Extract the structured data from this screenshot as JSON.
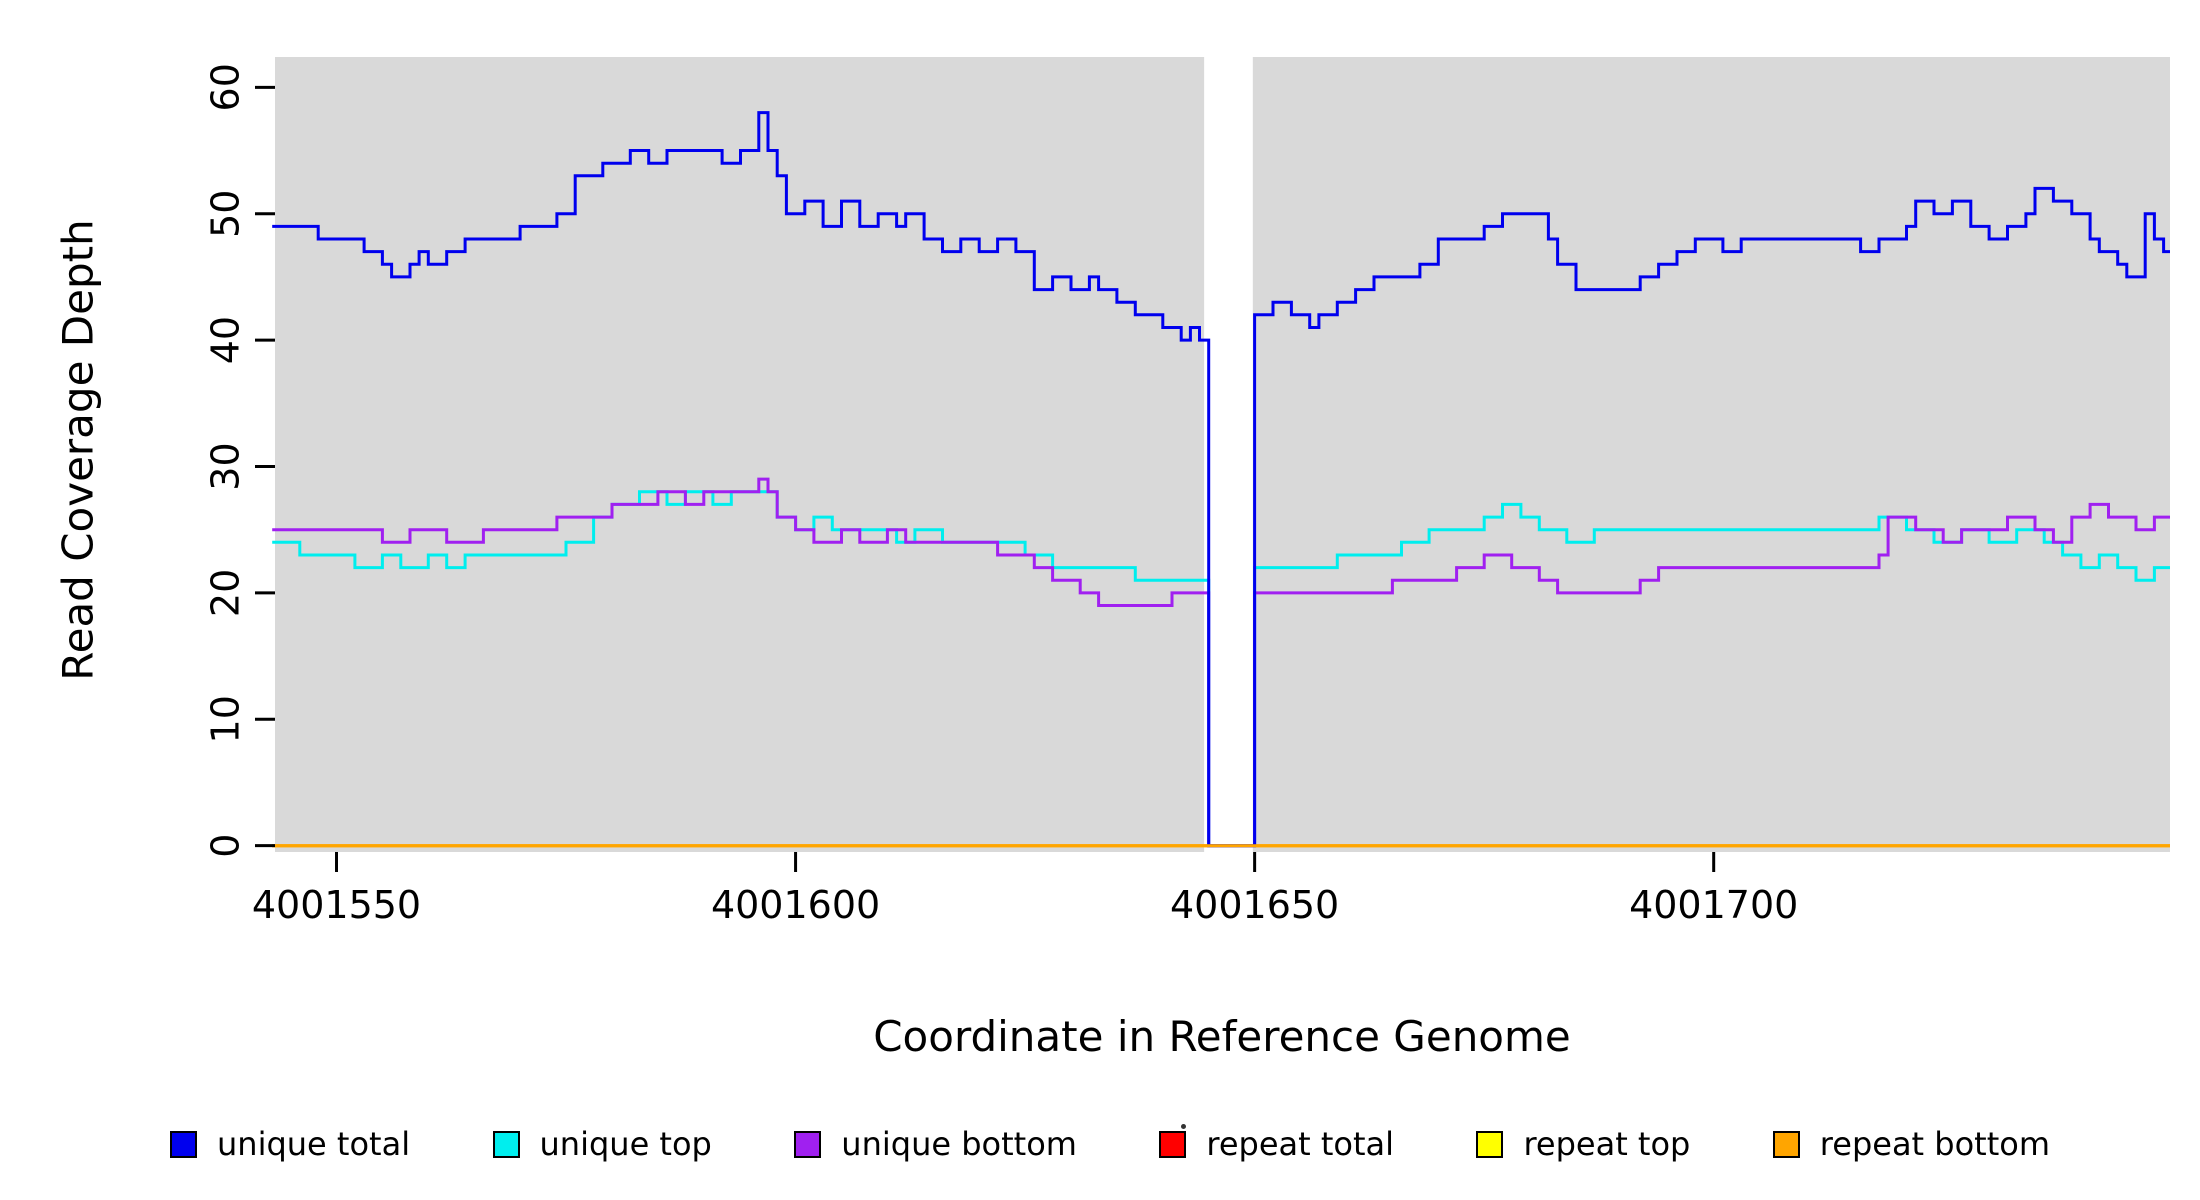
{
  "chart_data": {
    "type": "line",
    "subtype": "step",
    "title": "",
    "xlabel": "Coordinate in Reference Genome",
    "ylabel": "Read Coverage Depth",
    "x_domain": [
      4001543.3,
      4001749.7
    ],
    "y_domain": [
      -0.5,
      62.4
    ],
    "x_ticks": [
      4001550,
      4001600,
      4001650,
      4001700
    ],
    "y_ticks": [
      0,
      10,
      20,
      30,
      40,
      50,
      60
    ],
    "plot_bg": "#d9d9d9",
    "gap": {
      "x_start": 4001644.5,
      "x_end": 4001649.8
    },
    "grid": false,
    "legend_position": "bottom",
    "legend": [
      {
        "label": "unique total",
        "color": "#0000EE"
      },
      {
        "label": "unique top",
        "color": "#00EEEE"
      },
      {
        "label": "unique bottom",
        "color": "#A020F0"
      },
      {
        "label": "repeat total",
        "color": "#FF0000"
      },
      {
        "label": "repeat top",
        "color": "#FFFF00"
      },
      {
        "label": "repeat bottom",
        "color": "#FFA500"
      }
    ],
    "series": [
      {
        "name": "repeat total",
        "color": "#FF0000",
        "points": [
          [
            4001543,
            0
          ]
        ]
      },
      {
        "name": "repeat top",
        "color": "#FFFF00",
        "points": [
          [
            4001543,
            0
          ]
        ]
      },
      {
        "name": "unique top",
        "color": "#00EEEE",
        "points": [
          [
            4001543,
            24
          ],
          [
            4001546,
            23
          ],
          [
            4001552,
            22
          ],
          [
            4001555,
            23
          ],
          [
            4001557,
            22
          ],
          [
            4001560,
            23
          ],
          [
            4001562,
            22
          ],
          [
            4001564,
            23
          ],
          [
            4001572,
            23
          ],
          [
            4001575,
            24
          ],
          [
            4001578,
            26
          ],
          [
            4001580,
            27
          ],
          [
            4001583,
            28
          ],
          [
            4001586,
            27
          ],
          [
            4001588,
            28
          ],
          [
            4001591,
            27
          ],
          [
            4001593,
            28
          ],
          [
            4001596,
            28
          ],
          [
            4001598,
            26
          ],
          [
            4001600,
            25
          ],
          [
            4001602,
            26
          ],
          [
            4001604,
            25
          ],
          [
            4001608,
            25
          ],
          [
            4001611,
            24
          ],
          [
            4001613,
            25
          ],
          [
            4001616,
            24
          ],
          [
            4001622,
            24
          ],
          [
            4001625,
            23
          ],
          [
            4001628,
            22
          ],
          [
            4001634,
            22
          ],
          [
            4001637,
            21
          ],
          [
            4001645,
            0
          ],
          [
            4001650,
            22
          ],
          [
            4001656,
            22
          ],
          [
            4001659,
            23
          ],
          [
            4001663,
            23
          ],
          [
            4001666,
            24
          ],
          [
            4001669,
            25
          ],
          [
            4001673,
            25
          ],
          [
            4001675,
            26
          ],
          [
            4001677,
            27
          ],
          [
            4001679,
            26
          ],
          [
            4001681,
            25
          ],
          [
            4001684,
            24
          ],
          [
            4001687,
            25
          ],
          [
            4001700,
            25
          ],
          [
            4001715,
            25
          ],
          [
            4001718,
            26
          ],
          [
            4001721,
            25
          ],
          [
            4001724,
            24
          ],
          [
            4001727,
            25
          ],
          [
            4001730,
            24
          ],
          [
            4001733,
            25
          ],
          [
            4001736,
            24
          ],
          [
            4001738,
            23
          ],
          [
            4001740,
            22
          ],
          [
            4001742,
            23
          ],
          [
            4001744,
            22
          ],
          [
            4001746,
            21
          ],
          [
            4001748,
            22
          ]
        ]
      },
      {
        "name": "unique bottom",
        "color": "#A020F0",
        "points": [
          [
            4001543,
            25
          ],
          [
            4001555,
            24
          ],
          [
            4001558,
            25
          ],
          [
            4001562,
            24
          ],
          [
            4001566,
            25
          ],
          [
            4001574,
            26
          ],
          [
            4001580,
            27
          ],
          [
            4001585,
            28
          ],
          [
            4001588,
            27
          ],
          [
            4001590,
            28
          ],
          [
            4001595,
            28
          ],
          [
            4001596,
            29
          ],
          [
            4001597,
            28
          ],
          [
            4001598,
            26
          ],
          [
            4001600,
            25
          ],
          [
            4001602,
            24
          ],
          [
            4001605,
            25
          ],
          [
            4001607,
            24
          ],
          [
            4001610,
            25
          ],
          [
            4001612,
            24
          ],
          [
            4001620,
            24
          ],
          [
            4001622,
            23
          ],
          [
            4001626,
            22
          ],
          [
            4001628,
            21
          ],
          [
            4001631,
            20
          ],
          [
            4001633,
            19
          ],
          [
            4001641,
            20
          ],
          [
            4001645,
            0
          ],
          [
            4001650,
            20
          ],
          [
            4001662,
            20
          ],
          [
            4001665,
            21
          ],
          [
            4001670,
            21
          ],
          [
            4001672,
            22
          ],
          [
            4001675,
            23
          ],
          [
            4001678,
            22
          ],
          [
            4001681,
            21
          ],
          [
            4001683,
            20
          ],
          [
            4001690,
            20
          ],
          [
            4001692,
            21
          ],
          [
            4001694,
            22
          ],
          [
            4001715,
            22
          ],
          [
            4001718,
            23
          ],
          [
            4001719,
            26
          ],
          [
            4001722,
            25
          ],
          [
            4001725,
            24
          ],
          [
            4001727,
            25
          ],
          [
            4001732,
            26
          ],
          [
            4001735,
            25
          ],
          [
            4001737,
            24
          ],
          [
            4001739,
            26
          ],
          [
            4001741,
            27
          ],
          [
            4001743,
            26
          ],
          [
            4001746,
            25
          ],
          [
            4001748,
            26
          ]
        ]
      },
      {
        "name": "unique total",
        "color": "#0000EE",
        "points": [
          [
            4001543,
            49
          ],
          [
            4001548,
            48
          ],
          [
            4001553,
            47
          ],
          [
            4001555,
            46
          ],
          [
            4001556,
            45
          ],
          [
            4001558,
            46
          ],
          [
            4001559,
            47
          ],
          [
            4001560,
            46
          ],
          [
            4001562,
            47
          ],
          [
            4001564,
            48
          ],
          [
            4001567,
            48
          ],
          [
            4001570,
            49
          ],
          [
            4001574,
            50
          ],
          [
            4001576,
            53
          ],
          [
            4001579,
            54
          ],
          [
            4001582,
            55
          ],
          [
            4001584,
            54
          ],
          [
            4001586,
            55
          ],
          [
            4001590,
            55
          ],
          [
            4001592,
            54
          ],
          [
            4001594,
            55
          ],
          [
            4001596,
            58
          ],
          [
            4001597,
            55
          ],
          [
            4001598,
            53
          ],
          [
            4001599,
            50
          ],
          [
            4001601,
            51
          ],
          [
            4001603,
            49
          ],
          [
            4001605,
            51
          ],
          [
            4001607,
            49
          ],
          [
            4001609,
            50
          ],
          [
            4001611,
            49
          ],
          [
            4001612,
            50
          ],
          [
            4001614,
            48
          ],
          [
            4001616,
            47
          ],
          [
            4001618,
            48
          ],
          [
            4001620,
            47
          ],
          [
            4001622,
            48
          ],
          [
            4001624,
            47
          ],
          [
            4001626,
            44
          ],
          [
            4001628,
            45
          ],
          [
            4001630,
            44
          ],
          [
            4001632,
            45
          ],
          [
            4001633,
            44
          ],
          [
            4001635,
            43
          ],
          [
            4001637,
            42
          ],
          [
            4001639,
            42
          ],
          [
            4001640,
            41
          ],
          [
            4001642,
            40
          ],
          [
            4001643,
            41
          ],
          [
            4001644,
            40
          ],
          [
            4001645,
            0
          ],
          [
            4001650,
            42
          ],
          [
            4001652,
            43
          ],
          [
            4001654,
            42
          ],
          [
            4001656,
            41
          ],
          [
            4001657,
            42
          ],
          [
            4001659,
            43
          ],
          [
            4001661,
            44
          ],
          [
            4001663,
            45
          ],
          [
            4001666,
            45
          ],
          [
            4001668,
            46
          ],
          [
            4001670,
            48
          ],
          [
            4001673,
            48
          ],
          [
            4001675,
            49
          ],
          [
            4001677,
            50
          ],
          [
            4001680,
            50
          ],
          [
            4001682,
            48
          ],
          [
            4001683,
            46
          ],
          [
            4001685,
            44
          ],
          [
            4001690,
            44
          ],
          [
            4001692,
            45
          ],
          [
            4001694,
            46
          ],
          [
            4001696,
            47
          ],
          [
            4001698,
            48
          ],
          [
            4001701,
            47
          ],
          [
            4001703,
            48
          ],
          [
            4001712,
            48
          ],
          [
            4001716,
            47
          ],
          [
            4001718,
            48
          ],
          [
            4001721,
            49
          ],
          [
            4001722,
            51
          ],
          [
            4001724,
            50
          ],
          [
            4001726,
            51
          ],
          [
            4001728,
            49
          ],
          [
            4001730,
            48
          ],
          [
            4001732,
            49
          ],
          [
            4001734,
            50
          ],
          [
            4001735,
            52
          ],
          [
            4001737,
            51
          ],
          [
            4001739,
            50
          ],
          [
            4001741,
            48
          ],
          [
            4001742,
            47
          ],
          [
            4001744,
            46
          ],
          [
            4001745,
            45
          ],
          [
            4001747,
            50
          ],
          [
            4001748,
            48
          ],
          [
            4001749,
            47
          ]
        ]
      },
      {
        "name": "repeat bottom",
        "color": "#FFA500",
        "points": [
          [
            4001543,
            0
          ]
        ]
      }
    ]
  }
}
